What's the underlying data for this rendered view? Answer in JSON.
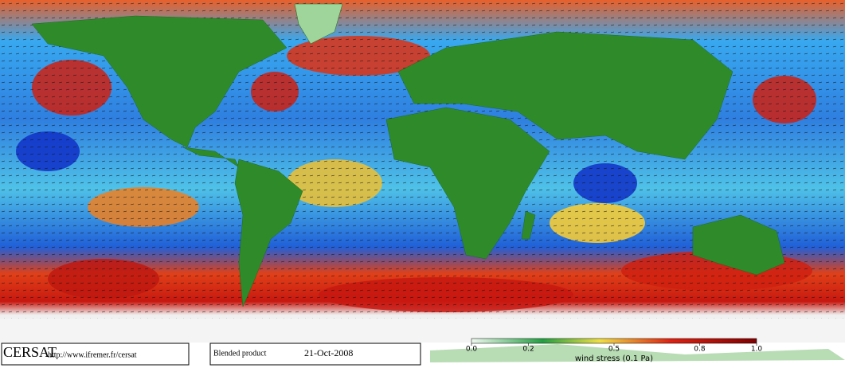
{
  "footer": {
    "logo": "CERSAT",
    "url": "http://www.ifremer.fr/cersat",
    "product": "Blended product",
    "date": "21-Oct-2008"
  },
  "colorbar": {
    "range": [
      0,
      1
    ],
    "label": "wind stress (0.1 Pa)",
    "ticks": [
      {
        "value": 0,
        "label": "0.0"
      },
      0.2,
      0.5,
      0.8,
      {
        "value": 1,
        "label": "1.0"
      }
    ]
  }
}
